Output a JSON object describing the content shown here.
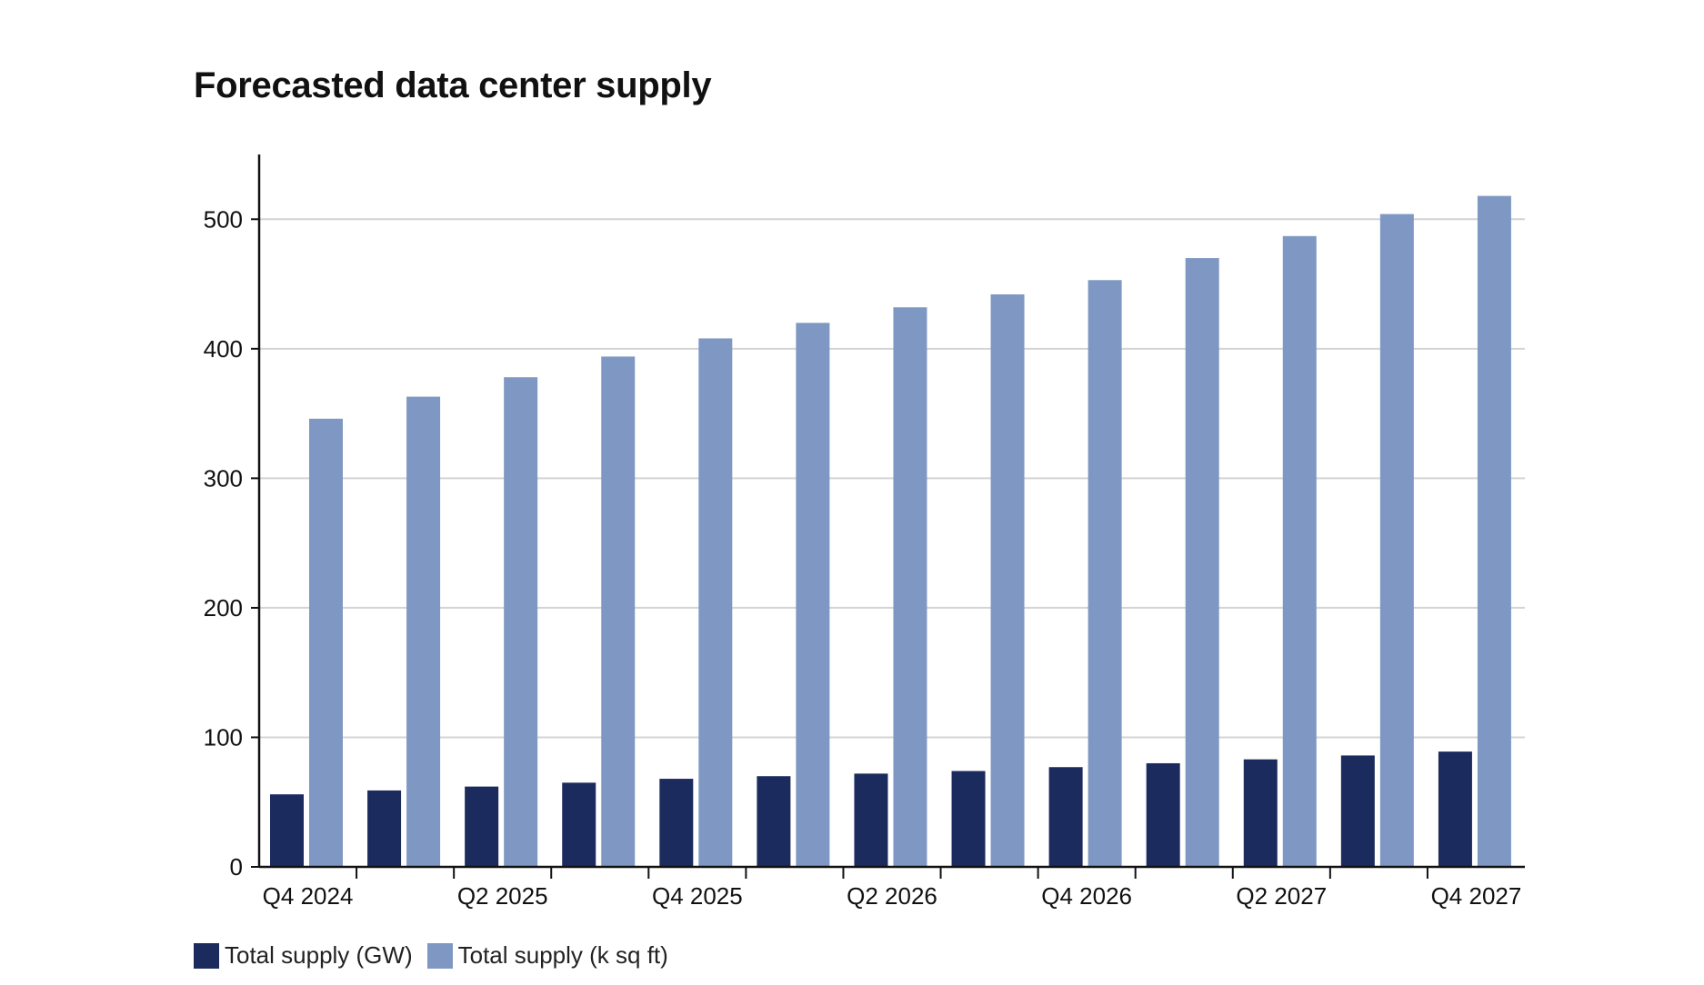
{
  "chart_data": {
    "type": "bar",
    "title": "Forecasted data center supply",
    "xlabel": "",
    "ylabel": "",
    "ylim": [
      0,
      550
    ],
    "yticks": [
      0,
      100,
      200,
      300,
      400,
      500
    ],
    "grid": true,
    "legend_position": "bottom-left",
    "categories": [
      "Q4 2024",
      "Q1 2025",
      "Q2 2025",
      "Q3 2025",
      "Q4 2025",
      "Q1 2026",
      "Q2 2026",
      "Q3 2026",
      "Q4 2026",
      "Q1 2027",
      "Q2 2027",
      "Q3 2027",
      "Q4 2027"
    ],
    "tick_labels": [
      "Q4 2024",
      "",
      "Q2 2025",
      "",
      "Q4 2025",
      "",
      "Q2 2026",
      "",
      "Q4 2026",
      "",
      "Q2 2027",
      "",
      "Q4 2027"
    ],
    "series": [
      {
        "name": "Total supply (GW)",
        "color": "#1c2b5e",
        "values": [
          56,
          59,
          62,
          65,
          68,
          70,
          72,
          74,
          77,
          80,
          83,
          86,
          89
        ]
      },
      {
        "name": "Total supply (k sq ft)",
        "color": "#7f98c3",
        "values": [
          346,
          363,
          378,
          394,
          408,
          420,
          432,
          442,
          453,
          470,
          487,
          504,
          518
        ]
      }
    ]
  }
}
